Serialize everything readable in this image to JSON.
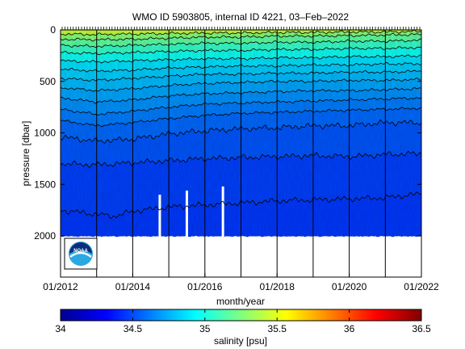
{
  "chart_data": {
    "type": "heatmap",
    "title": "WMO ID 5903805, internal ID 4221, 03–Feb–2022",
    "xlabel": "month/year",
    "ylabel": "pressure [dbar]",
    "x_range": [
      "2012-01",
      "2022-01"
    ],
    "x_tick_labels": [
      "01/2012",
      "01/2014",
      "01/2016",
      "01/2018",
      "01/2020",
      "01/2022"
    ],
    "x_tick_values": [
      2012,
      2014,
      2016,
      2018,
      2020,
      2022
    ],
    "ylim": [
      2400,
      0
    ],
    "y_tick_values": [
      0,
      500,
      1000,
      1500,
      2000
    ],
    "y_tick_labels": [
      "0",
      "500",
      "1000",
      "1500",
      "2000"
    ],
    "vertical_gridlines_years": [
      2013,
      2014,
      2015,
      2016,
      2017,
      2018,
      2019,
      2020,
      2021,
      2022
    ],
    "profile_max_pressure_dbar": 2000,
    "data_gaps_years": [
      2014.75,
      2015.5,
      2016.5
    ],
    "salinity_contours": [
      {
        "salinity": 34.5,
        "pressure": [
          [
            2012.0,
            1750
          ],
          [
            2013.0,
            1790
          ],
          [
            2013.5,
            1810
          ],
          [
            2014.0,
            1760
          ],
          [
            2015.0,
            1720
          ],
          [
            2016.0,
            1700
          ],
          [
            2017.0,
            1680
          ],
          [
            2018.0,
            1660
          ],
          [
            2019.0,
            1650
          ],
          [
            2020.0,
            1640
          ],
          [
            2021.0,
            1630
          ],
          [
            2022.0,
            1590
          ]
        ]
      },
      {
        "salinity": 34.55,
        "pressure": [
          [
            2012.0,
            1300
          ],
          [
            2013.0,
            1310
          ],
          [
            2014.0,
            1290
          ],
          [
            2015.0,
            1270
          ],
          [
            2016.0,
            1250
          ],
          [
            2017.0,
            1240
          ],
          [
            2018.0,
            1230
          ],
          [
            2019.0,
            1220
          ],
          [
            2020.0,
            1230
          ],
          [
            2021.0,
            1210
          ],
          [
            2022.0,
            1200
          ]
        ]
      },
      {
        "salinity": 34.6,
        "pressure": [
          [
            2012.0,
            1040
          ],
          [
            2013.0,
            1080
          ],
          [
            2014.0,
            1060
          ],
          [
            2015.0,
            1010
          ],
          [
            2016.0,
            980
          ],
          [
            2017.0,
            960
          ],
          [
            2018.0,
            950
          ],
          [
            2019.0,
            930
          ],
          [
            2020.0,
            930
          ],
          [
            2021.0,
            900
          ],
          [
            2022.0,
            900
          ]
        ]
      },
      {
        "salinity": 34.65,
        "pressure": [
          [
            2012.0,
            880
          ],
          [
            2013.0,
            930
          ],
          [
            2014.0,
            900
          ],
          [
            2015.0,
            860
          ],
          [
            2016.0,
            830
          ],
          [
            2017.0,
            810
          ],
          [
            2018.0,
            800
          ],
          [
            2019.0,
            790
          ],
          [
            2020.0,
            780
          ],
          [
            2021.0,
            770
          ],
          [
            2022.0,
            760
          ]
        ]
      },
      {
        "salinity": 34.7,
        "pressure": [
          [
            2012.0,
            770
          ],
          [
            2013.0,
            820
          ],
          [
            2014.0,
            790
          ],
          [
            2015.0,
            750
          ],
          [
            2016.0,
            720
          ],
          [
            2017.0,
            710
          ],
          [
            2018.0,
            700
          ],
          [
            2019.0,
            690
          ],
          [
            2020.0,
            680
          ],
          [
            2021.0,
            670
          ],
          [
            2022.0,
            660
          ]
        ]
      },
      {
        "salinity": 34.75,
        "pressure": [
          [
            2012.0,
            660
          ],
          [
            2013.0,
            700
          ],
          [
            2014.0,
            680
          ],
          [
            2015.0,
            640
          ],
          [
            2016.0,
            620
          ],
          [
            2017.0,
            610
          ],
          [
            2018.0,
            600
          ],
          [
            2019.0,
            590
          ],
          [
            2020.0,
            590
          ],
          [
            2021.0,
            580
          ],
          [
            2022.0,
            570
          ]
        ]
      },
      {
        "salinity": 34.8,
        "pressure": [
          [
            2012.0,
            560
          ],
          [
            2013.0,
            590
          ],
          [
            2014.0,
            570
          ],
          [
            2015.0,
            540
          ],
          [
            2016.0,
            520
          ],
          [
            2017.0,
            510
          ],
          [
            2018.0,
            500
          ],
          [
            2019.0,
            500
          ],
          [
            2020.0,
            490
          ],
          [
            2021.0,
            490
          ],
          [
            2022.0,
            480
          ]
        ]
      },
      {
        "salinity": 34.85,
        "pressure": [
          [
            2012.0,
            470
          ],
          [
            2013.0,
            490
          ],
          [
            2014.0,
            470
          ],
          [
            2015.0,
            450
          ],
          [
            2016.0,
            430
          ],
          [
            2017.0,
            430
          ],
          [
            2018.0,
            420
          ],
          [
            2019.0,
            420
          ],
          [
            2020.0,
            410
          ],
          [
            2021.0,
            410
          ],
          [
            2022.0,
            400
          ]
        ]
      },
      {
        "salinity": 34.9,
        "pressure": [
          [
            2012.0,
            380
          ],
          [
            2013.0,
            400
          ],
          [
            2014.0,
            390
          ],
          [
            2015.0,
            370
          ],
          [
            2016.0,
            360
          ],
          [
            2017.0,
            350
          ],
          [
            2018.0,
            350
          ],
          [
            2019.0,
            340
          ],
          [
            2020.0,
            340
          ],
          [
            2021.0,
            330
          ],
          [
            2022.0,
            330
          ]
        ]
      },
      {
        "salinity": 35.0,
        "pressure": [
          [
            2012.0,
            300
          ],
          [
            2013.0,
            310
          ],
          [
            2014.0,
            300
          ],
          [
            2015.0,
            290
          ],
          [
            2016.0,
            280
          ],
          [
            2017.0,
            280
          ],
          [
            2018.0,
            270
          ],
          [
            2019.0,
            270
          ],
          [
            2020.0,
            260
          ],
          [
            2021.0,
            260
          ],
          [
            2022.0,
            250
          ]
        ]
      },
      {
        "salinity": 35.1,
        "pressure": [
          [
            2012.0,
            220
          ],
          [
            2013.0,
            230
          ],
          [
            2014.0,
            220
          ],
          [
            2015.0,
            210
          ],
          [
            2016.0,
            200
          ],
          [
            2017.0,
            200
          ],
          [
            2018.0,
            190
          ],
          [
            2019.0,
            190
          ],
          [
            2020.0,
            180
          ],
          [
            2021.0,
            180
          ],
          [
            2022.0,
            170
          ]
        ]
      },
      {
        "salinity": 35.2,
        "pressure": [
          [
            2012.0,
            150
          ],
          [
            2013.0,
            160
          ],
          [
            2014.0,
            150
          ],
          [
            2015.0,
            140
          ],
          [
            2016.0,
            130
          ],
          [
            2017.0,
            130
          ],
          [
            2018.0,
            120
          ],
          [
            2019.0,
            120
          ],
          [
            2020.0,
            110
          ],
          [
            2021.0,
            110
          ],
          [
            2022.0,
            100
          ]
        ]
      },
      {
        "salinity": 35.3,
        "pressure": [
          [
            2012.0,
            90
          ],
          [
            2013.0,
            95
          ],
          [
            2014.0,
            90
          ],
          [
            2015.0,
            80
          ],
          [
            2016.0,
            70
          ],
          [
            2017.0,
            70
          ],
          [
            2018.0,
            60
          ],
          [
            2019.0,
            60
          ],
          [
            2020.0,
            55
          ],
          [
            2021.0,
            50
          ],
          [
            2022.0,
            45
          ]
        ]
      },
      {
        "salinity": 35.45,
        "pressure": [
          [
            2012.0,
            40
          ],
          [
            2013.0,
            45
          ],
          [
            2014.0,
            40
          ],
          [
            2015.0,
            35
          ],
          [
            2016.0,
            30
          ],
          [
            2017.0,
            30
          ],
          [
            2018.0,
            25
          ],
          [
            2019.0,
            25
          ],
          [
            2020.0,
            20
          ],
          [
            2021.0,
            20
          ],
          [
            2022.0,
            15
          ]
        ]
      }
    ],
    "colorbar": {
      "label": "salinity [psu]",
      "range": [
        34,
        36.5
      ],
      "tick_values": [
        34,
        34.5,
        35,
        35.5,
        36,
        36.5
      ],
      "tick_labels": [
        "34",
        "34.5",
        "35",
        "35.5",
        "36",
        "36.5"
      ],
      "colormap": "jet"
    }
  },
  "logo": {
    "text": "NOAA",
    "name": "noaa-logo"
  }
}
